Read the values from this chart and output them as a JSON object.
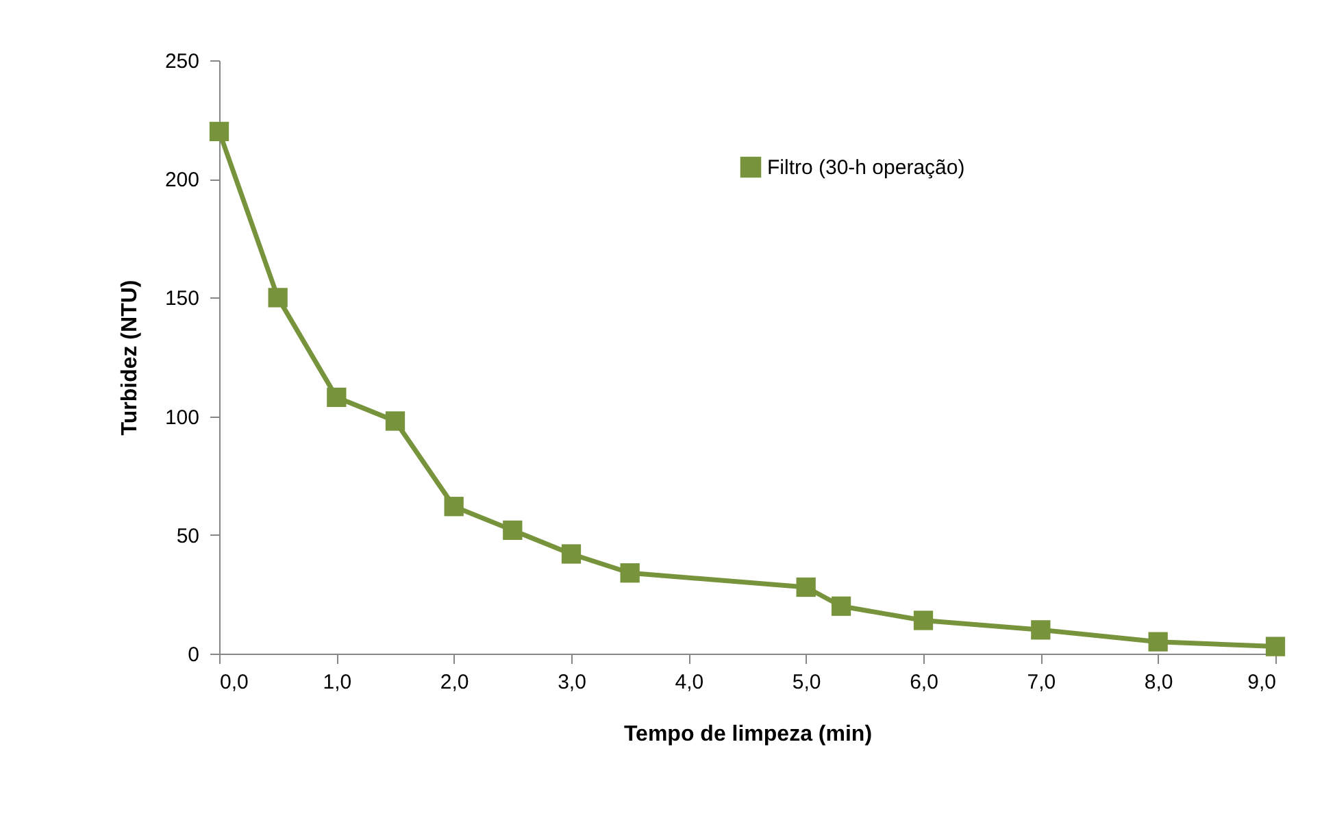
{
  "chart_data": {
    "type": "line",
    "xlabel": "Tempo de limpeza (min)",
    "ylabel": "Turbidez (NTU)",
    "x": [
      0,
      0.5,
      1.0,
      1.5,
      2.0,
      2.5,
      3.0,
      3.5,
      5.0,
      5.3,
      6.0,
      7.0,
      8.0,
      9.0
    ],
    "series": [
      {
        "name": "Filtro (30-h operação)",
        "color": "#77933c",
        "values": [
          220,
          150,
          108,
          98,
          62,
          52,
          42,
          34,
          28,
          20,
          14,
          10,
          5,
          3
        ]
      }
    ],
    "xlim": [
      0,
      9
    ],
    "xticks": [
      {
        "value": 0,
        "label": "0,0"
      },
      {
        "value": 1,
        "label": "1,0"
      },
      {
        "value": 2,
        "label": "2,0"
      },
      {
        "value": 3,
        "label": "3,0"
      },
      {
        "value": 4,
        "label": "4,0"
      },
      {
        "value": 5,
        "label": "5,0"
      },
      {
        "value": 6,
        "label": "6,0"
      },
      {
        "value": 7,
        "label": "7,0"
      },
      {
        "value": 8,
        "label": "8,0"
      },
      {
        "value": 9,
        "label": "9,0"
      }
    ],
    "ylim": [
      0,
      250
    ],
    "yticks": [
      0,
      50,
      100,
      150,
      200,
      250
    ],
    "grid": false,
    "legend": "top right",
    "marker": "square",
    "line_style": "solid"
  }
}
